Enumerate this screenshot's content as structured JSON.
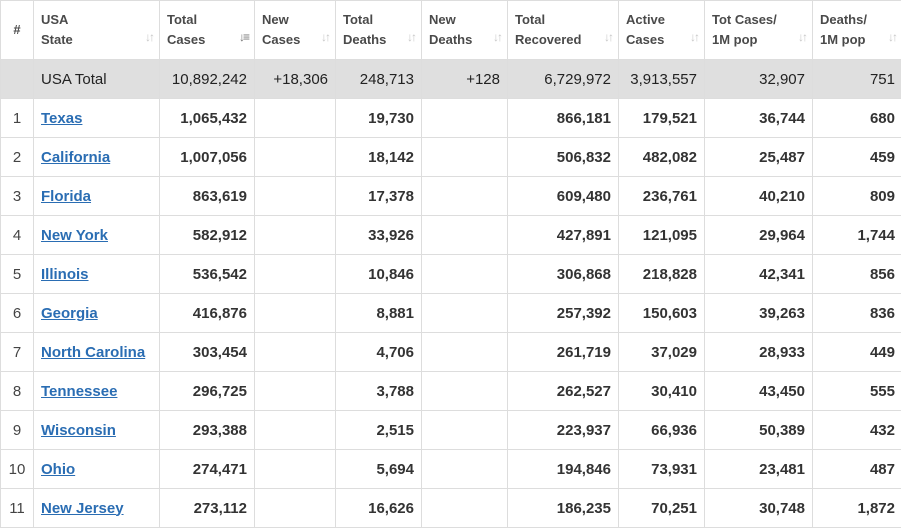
{
  "headers": {
    "num": "#",
    "state": [
      "USA",
      "State"
    ],
    "total_cases": [
      "Total",
      "Cases"
    ],
    "new_cases": [
      "New",
      "Cases"
    ],
    "total_deaths": [
      "Total",
      "Deaths"
    ],
    "new_deaths": [
      "New",
      "Deaths"
    ],
    "total_recovered": [
      "Total",
      "Recovered"
    ],
    "active_cases": [
      "Active",
      "Cases"
    ],
    "tot_cases_1m": [
      "Tot Cases/",
      "1M pop"
    ],
    "deaths_1m": [
      "Deaths/",
      "1M pop"
    ]
  },
  "sort_icon": "↓↑",
  "total": {
    "label": "USA Total",
    "total_cases": "10,892,242",
    "new_cases": "+18,306",
    "total_deaths": "248,713",
    "new_deaths": "+128",
    "total_recovered": "6,729,972",
    "active_cases": "3,913,557",
    "tot_cases_1m": "32,907",
    "deaths_1m": "751"
  },
  "rows": [
    {
      "num": "1",
      "state": "Texas",
      "total_cases": "1,065,432",
      "new_cases": "",
      "total_deaths": "19,730",
      "new_deaths": "",
      "total_recovered": "866,181",
      "active_cases": "179,521",
      "tot_cases_1m": "36,744",
      "deaths_1m": "680"
    },
    {
      "num": "2",
      "state": "California",
      "total_cases": "1,007,056",
      "new_cases": "",
      "total_deaths": "18,142",
      "new_deaths": "",
      "total_recovered": "506,832",
      "active_cases": "482,082",
      "tot_cases_1m": "25,487",
      "deaths_1m": "459"
    },
    {
      "num": "3",
      "state": "Florida",
      "total_cases": "863,619",
      "new_cases": "",
      "total_deaths": "17,378",
      "new_deaths": "",
      "total_recovered": "609,480",
      "active_cases": "236,761",
      "tot_cases_1m": "40,210",
      "deaths_1m": "809"
    },
    {
      "num": "4",
      "state": "New York",
      "total_cases": "582,912",
      "new_cases": "",
      "total_deaths": "33,926",
      "new_deaths": "",
      "total_recovered": "427,891",
      "active_cases": "121,095",
      "tot_cases_1m": "29,964",
      "deaths_1m": "1,744"
    },
    {
      "num": "5",
      "state": "Illinois",
      "total_cases": "536,542",
      "new_cases": "",
      "total_deaths": "10,846",
      "new_deaths": "",
      "total_recovered": "306,868",
      "active_cases": "218,828",
      "tot_cases_1m": "42,341",
      "deaths_1m": "856"
    },
    {
      "num": "6",
      "state": "Georgia",
      "total_cases": "416,876",
      "new_cases": "",
      "total_deaths": "8,881",
      "new_deaths": "",
      "total_recovered": "257,392",
      "active_cases": "150,603",
      "tot_cases_1m": "39,263",
      "deaths_1m": "836"
    },
    {
      "num": "7",
      "state": "North Carolina",
      "total_cases": "303,454",
      "new_cases": "",
      "total_deaths": "4,706",
      "new_deaths": "",
      "total_recovered": "261,719",
      "active_cases": "37,029",
      "tot_cases_1m": "28,933",
      "deaths_1m": "449"
    },
    {
      "num": "8",
      "state": "Tennessee",
      "total_cases": "296,725",
      "new_cases": "",
      "total_deaths": "3,788",
      "new_deaths": "",
      "total_recovered": "262,527",
      "active_cases": "30,410",
      "tot_cases_1m": "43,450",
      "deaths_1m": "555"
    },
    {
      "num": "9",
      "state": "Wisconsin",
      "total_cases": "293,388",
      "new_cases": "",
      "total_deaths": "2,515",
      "new_deaths": "",
      "total_recovered": "223,937",
      "active_cases": "66,936",
      "tot_cases_1m": "50,389",
      "deaths_1m": "432"
    },
    {
      "num": "10",
      "state": "Ohio",
      "total_cases": "274,471",
      "new_cases": "",
      "total_deaths": "5,694",
      "new_deaths": "",
      "total_recovered": "194,846",
      "active_cases": "73,931",
      "tot_cases_1m": "23,481",
      "deaths_1m": "487"
    },
    {
      "num": "11",
      "state": "New Jersey",
      "total_cases": "273,112",
      "new_cases": "",
      "total_deaths": "16,626",
      "new_deaths": "",
      "total_recovered": "186,235",
      "active_cases": "70,251",
      "tot_cases_1m": "30,748",
      "deaths_1m": "1,872"
    }
  ],
  "colors": {
    "link": "#2a6db3",
    "total_row_bg": "#dfdfdf",
    "border": "#dddddd"
  }
}
